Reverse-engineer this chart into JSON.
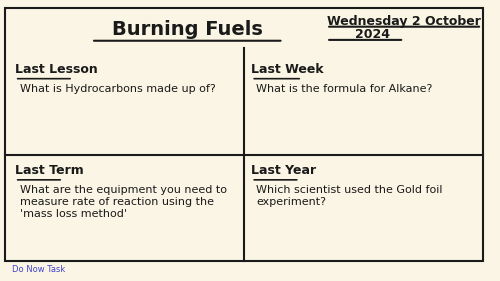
{
  "bg_color": "#faf5e4",
  "border_color": "#1a1a1a",
  "title": "Burning Fuels",
  "date_line1": "Wednesday 2 October",
  "date_line2": "2024",
  "footer": "Do Now Task",
  "footer_color": "#4444cc",
  "quadrants": [
    {
      "header": "Last Lesson",
      "text": "What is Hydrocarbons made up of?"
    },
    {
      "header": "Last Week",
      "text": "What is the formula for Alkane?"
    },
    {
      "header": "Last Term",
      "text": "What are the equipment you need to\nmeasure rate of reaction using the\n'mass loss method'"
    },
    {
      "header": "Last Year",
      "text": "Which scientist used the Gold foil\nexperiment?"
    }
  ],
  "title_fontsize": 14,
  "date_fontsize": 9,
  "header_fontsize": 9,
  "body_fontsize": 8,
  "footer_fontsize": 6
}
